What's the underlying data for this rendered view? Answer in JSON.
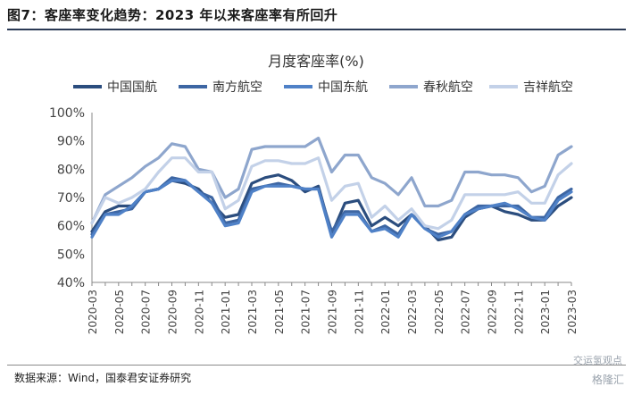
{
  "header": {
    "figure_title": "图7：客座率变化趋势：2023 年以来客座率有所回升"
  },
  "footer": {
    "source": "数据来源：Wind，国泰君安证券研究",
    "watermark_top": "交运氢观点",
    "watermark_bottom": "格隆汇"
  },
  "chart_data": {
    "type": "line",
    "title": "月度客座率(%)",
    "xlabel": "",
    "ylabel": "",
    "ylim": [
      40,
      100
    ],
    "yticks": [
      "40%",
      "50%",
      "60%",
      "70%",
      "80%",
      "90%",
      "100%"
    ],
    "ytick_values": [
      40,
      50,
      60,
      70,
      80,
      90,
      100
    ],
    "grid": false,
    "legend_position": "top",
    "x": [
      "2020-03",
      "2020-04",
      "2020-05",
      "2020-06",
      "2020-07",
      "2020-08",
      "2020-09",
      "2020-10",
      "2020-11",
      "2020-12",
      "2021-01",
      "2021-02",
      "2021-03",
      "2021-04",
      "2021-05",
      "2021-06",
      "2021-07",
      "2021-08",
      "2021-09",
      "2021-10",
      "2021-11",
      "2021-12",
      "2022-01",
      "2022-02",
      "2022-03",
      "2022-04",
      "2022-05",
      "2022-06",
      "2022-07",
      "2022-08",
      "2022-09",
      "2022-10",
      "2022-11",
      "2022-12",
      "2023-01",
      "2023-02",
      "2023-03"
    ],
    "xtick_labels": [
      "2020-03",
      "2020-05",
      "2020-07",
      "2020-09",
      "2020-11",
      "2021-01",
      "2021-03",
      "2021-05",
      "2021-07",
      "2021-09",
      "2021-11",
      "2022-01",
      "2022-03",
      "2022-05",
      "2022-07",
      "2022-09",
      "2022-11",
      "2023-01",
      "2023-03"
    ],
    "series": [
      {
        "name": "中国国航",
        "color": "#2b4d7e",
        "values": [
          58,
          65,
          67,
          67,
          72,
          73,
          76,
          75,
          73,
          68,
          63,
          64,
          75,
          77,
          78,
          76,
          72,
          74,
          57,
          68,
          69,
          60,
          63,
          60,
          64,
          60,
          55,
          56,
          63,
          66,
          67,
          65,
          64,
          62,
          62,
          67,
          70
        ]
      },
      {
        "name": "南方航空",
        "color": "#3d66a3",
        "values": [
          57,
          64,
          65,
          66,
          72,
          73,
          77,
          76,
          72,
          70,
          61,
          62,
          73,
          74,
          75,
          74,
          73,
          73,
          58,
          65,
          65,
          58,
          60,
          57,
          64,
          59,
          57,
          58,
          64,
          67,
          67,
          67,
          67,
          63,
          63,
          70,
          73
        ]
      },
      {
        "name": "中国东航",
        "color": "#4f81c7",
        "values": [
          56,
          64,
          64,
          67,
          72,
          73,
          76,
          76,
          72,
          68,
          60,
          61,
          72,
          74,
          74,
          74,
          73,
          73,
          56,
          64,
          64,
          58,
          59,
          56,
          64,
          59,
          56,
          58,
          64,
          66,
          67,
          68,
          66,
          63,
          62,
          69,
          72
        ]
      },
      {
        "name": "春秋航空",
        "color": "#8ea6cd",
        "values": [
          61,
          71,
          74,
          77,
          81,
          84,
          89,
          88,
          80,
          79,
          70,
          73,
          87,
          88,
          88,
          88,
          88,
          91,
          79,
          85,
          85,
          77,
          75,
          71,
          77,
          67,
          67,
          69,
          79,
          79,
          78,
          78,
          77,
          72,
          74,
          85,
          88
        ]
      },
      {
        "name": "吉祥航空",
        "color": "#c3d1e8",
        "values": [
          61,
          70,
          68,
          70,
          73,
          79,
          84,
          84,
          79,
          79,
          66,
          69,
          81,
          83,
          83,
          82,
          82,
          84,
          69,
          74,
          75,
          63,
          67,
          62,
          66,
          60,
          59,
          62,
          71,
          71,
          71,
          71,
          72,
          68,
          68,
          78,
          82
        ]
      }
    ]
  }
}
